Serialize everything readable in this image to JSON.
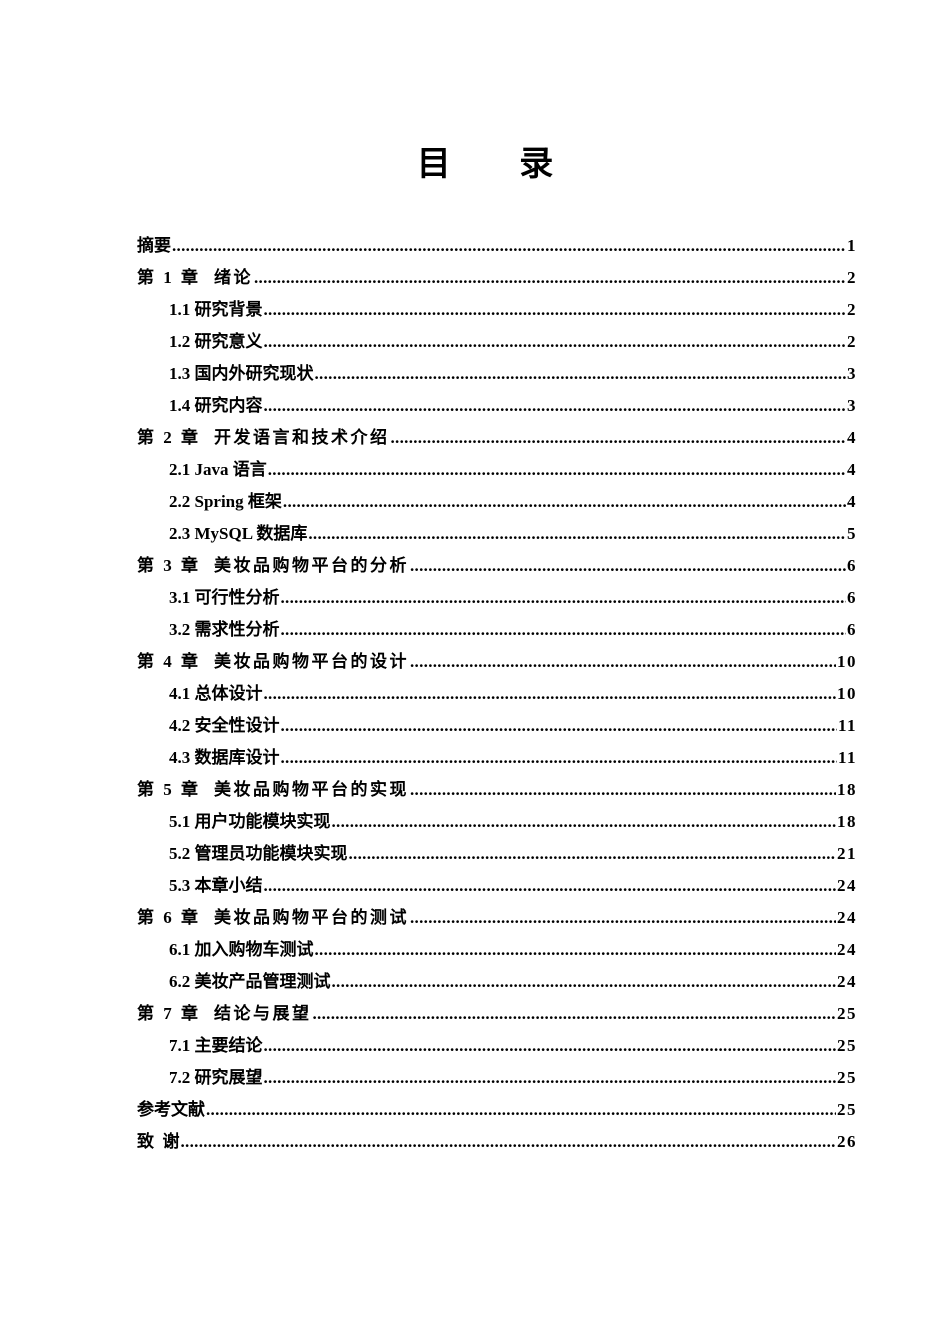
{
  "title": "目 录",
  "entries": [
    {
      "level": 1,
      "label": "摘要",
      "page": "1"
    },
    {
      "level": 1,
      "label": "第 1 章  绪论",
      "page": "2"
    },
    {
      "level": 2,
      "label": "1.1 研究背景",
      "page": "2"
    },
    {
      "level": 2,
      "label": "1.2 研究意义",
      "page": "2"
    },
    {
      "level": 2,
      "label": "1.3 国内外研究现状",
      "page": "3"
    },
    {
      "level": 2,
      "label": "1.4 研究内容",
      "page": "3"
    },
    {
      "level": 1,
      "label": "第 2 章  开发语言和技术介绍",
      "page": "4"
    },
    {
      "level": 2,
      "label": "2.1 Java 语言",
      "page": "4"
    },
    {
      "level": 2,
      "label": "2.2 Spring 框架",
      "page": "4"
    },
    {
      "level": 2,
      "label": "2.3 MySQL 数据库",
      "page": "5"
    },
    {
      "level": 1,
      "label": "第 3 章  美妆品购物平台的分析",
      "page": "6"
    },
    {
      "level": 2,
      "label": "3.1 可行性分析",
      "page": "6"
    },
    {
      "level": 2,
      "label": "3.2 需求性分析",
      "page": "6"
    },
    {
      "level": 1,
      "label": "第 4 章  美妆品购物平台的设计",
      "page": "10"
    },
    {
      "level": 2,
      "label": "4.1 总体设计",
      "page": "10"
    },
    {
      "level": 2,
      "label": "4.2 安全性设计",
      "page": "11"
    },
    {
      "level": 2,
      "label": "4.3 数据库设计",
      "page": "11"
    },
    {
      "level": 1,
      "label": "第 5 章  美妆品购物平台的实现",
      "page": "18"
    },
    {
      "level": 2,
      "label": "5.1 用户功能模块实现",
      "page": "18"
    },
    {
      "level": 2,
      "label": "5.2 管理员功能模块实现",
      "page": "21"
    },
    {
      "level": 2,
      "label": "5.3 本章小结",
      "page": "24"
    },
    {
      "level": 1,
      "label": "第 6 章  美妆品购物平台的测试",
      "page": "24"
    },
    {
      "level": 2,
      "label": "6.1 加入购物车测试",
      "page": "24"
    },
    {
      "level": 2,
      "label": "6.2 美妆产品管理测试",
      "page": "24"
    },
    {
      "level": 1,
      "label": "第 7 章  结论与展望",
      "page": "25"
    },
    {
      "level": 2,
      "label": "7.1 主要结论",
      "page": "25"
    },
    {
      "level": 2,
      "label": "7.2 研究展望",
      "page": "25"
    },
    {
      "level": 1,
      "label": "参考文献",
      "page": "25"
    },
    {
      "level": 1,
      "label": "致  谢",
      "page": "26"
    }
  ]
}
